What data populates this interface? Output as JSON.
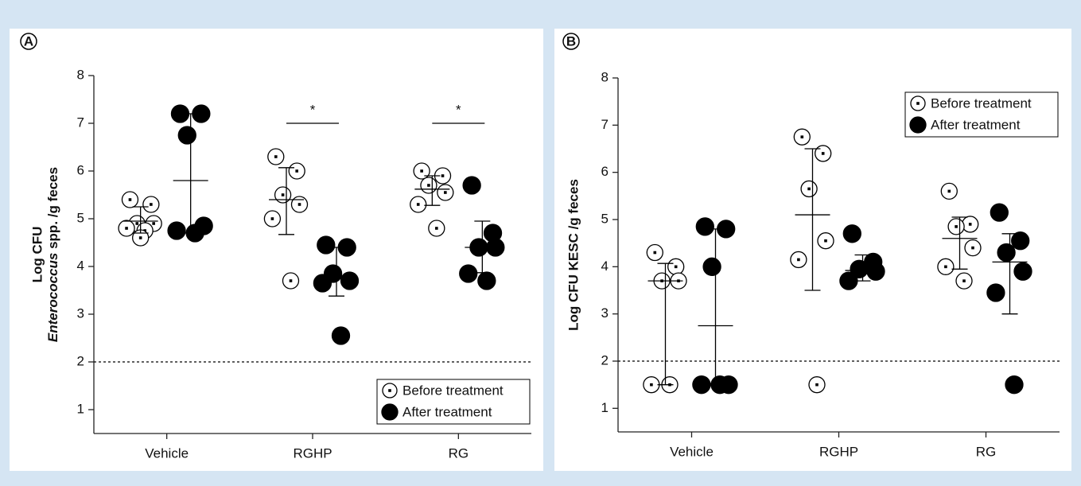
{
  "chart_data": [
    {
      "type": "scatter",
      "panel": "A",
      "ylabel": "Log CFU",
      "ylabel_italic": "Enterococcus",
      "ylabel_rest": "spp. /g feces",
      "categories": [
        "Vehicle",
        "RGHP",
        "RG"
      ],
      "series": [
        {
          "name": "Before treatment",
          "color": "#ffffff",
          "values": [
            [
              5.4,
              5.3,
              4.9,
              4.9,
              4.8,
              4.75,
              4.6
            ],
            [
              6.3,
              6.0,
              5.5,
              5.3,
              5.0,
              3.7
            ],
            [
              6.0,
              5.9,
              5.7,
              5.55,
              5.3,
              4.8
            ]
          ],
          "means": [
            4.95,
            5.4,
            5.62
          ],
          "upper": [
            5.25,
            6.07,
            5.9
          ],
          "lower": [
            4.7,
            4.67,
            5.28
          ]
        },
        {
          "name": "After treatment",
          "color": "#000000",
          "values": [
            [
              7.2,
              7.2,
              6.75,
              4.85,
              4.75,
              4.7
            ],
            [
              4.45,
              4.4,
              3.85,
              3.7,
              3.65,
              2.55
            ],
            [
              5.7,
              4.7,
              4.4,
              4.4,
              3.85,
              3.7
            ]
          ],
          "means": [
            5.8,
            3.75,
            4.4
          ],
          "upper": [
            7.2,
            4.4,
            4.95
          ],
          "lower": [
            4.7,
            3.38,
            3.87
          ]
        }
      ],
      "ylim": [
        0.5,
        8
      ],
      "yticks": [
        1,
        2,
        3,
        4,
        5,
        6,
        7,
        8
      ],
      "reference_line": 2,
      "legend": "lower right",
      "significance": [
        null,
        "*",
        "*"
      ],
      "significance_y": [
        null,
        7,
        7
      ]
    },
    {
      "type": "scatter",
      "panel": "B",
      "ylabel": "Log CFU KESC /g feces",
      "categories": [
        "Vehicle",
        "RGHP",
        "RG"
      ],
      "series": [
        {
          "name": "Before treatment",
          "color": "#ffffff",
          "values": [
            [
              4.3,
              4.0,
              3.7,
              3.7,
              1.5,
              1.5
            ],
            [
              6.75,
              6.4,
              5.65,
              4.55,
              4.15,
              1.5
            ],
            [
              5.6,
              4.9,
              4.85,
              4.4,
              4.0,
              3.7
            ]
          ],
          "means": [
            3.7,
            5.1,
            4.6
          ],
          "upper": [
            4.07,
            6.5,
            5.05
          ],
          "lower": [
            1.5,
            3.5,
            3.95
          ]
        },
        {
          "name": "After treatment",
          "color": "#000000",
          "values": [
            [
              4.85,
              4.8,
              4.0,
              1.5,
              1.5,
              1.5
            ],
            [
              4.7,
              4.1,
              3.95,
              3.9,
              3.7
            ],
            [
              5.15,
              4.55,
              4.3,
              3.9,
              3.45,
              1.5
            ]
          ],
          "means": [
            2.75,
            3.92,
            4.1
          ],
          "upper": [
            4.8,
            4.25,
            4.7
          ],
          "lower": [
            1.5,
            3.7,
            3.0
          ]
        }
      ],
      "ylim": [
        0.5,
        8
      ],
      "yticks": [
        1,
        2,
        3,
        4,
        5,
        6,
        7,
        8
      ],
      "reference_line": 2,
      "legend": "upper right"
    }
  ]
}
